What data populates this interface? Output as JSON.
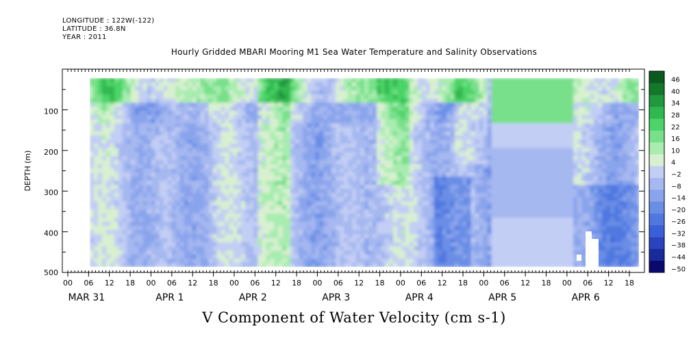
{
  "header": {
    "longitude": "LONGITUDE : 122W(-122)",
    "latitude": "LATITUDE : 36.8N",
    "year": "YEAR : 2011"
  },
  "chart_data": {
    "type": "heatmap",
    "title": "Hourly Gridded MBARI Mooring M1 Sea Water Temperature and Salinity Observations",
    "xlabel": "V Component of Water Velocity (cm s-1)",
    "ylabel": "DEPTH (m)",
    "ylim": [
      500,
      0
    ],
    "y_ticks": [
      100,
      200,
      300,
      400,
      500
    ],
    "x_hour_ticks": [
      "00",
      "06",
      "12",
      "18",
      "00",
      "06",
      "12",
      "18",
      "00",
      "06",
      "12",
      "18",
      "00",
      "06",
      "12",
      "18",
      "00",
      "06",
      "12",
      "18",
      "00",
      "06",
      "12",
      "18",
      "00",
      "06",
      "12",
      "18"
    ],
    "x_day_labels": [
      "MAR 31",
      "APR  1",
      "APR  2",
      "APR  3",
      "APR  4",
      "APR  5",
      "APR  6"
    ],
    "colorbar": {
      "levels": [
        -50,
        -44,
        -38,
        -32,
        -26,
        -20,
        -14,
        -8,
        -2,
        4,
        10,
        16,
        22,
        28,
        34,
        40,
        46
      ],
      "colors_low_to_high": [
        "#0a0a6e",
        "#1a2a9a",
        "#2a44c0",
        "#3a60d8",
        "#5078e0",
        "#6a8ee6",
        "#8aa4ec",
        "#a6b8f0",
        "#c2cef4",
        "#d8f0d0",
        "#a8ecb0",
        "#78e08a",
        "#4cd468",
        "#30b850",
        "#20983c",
        "#14782c",
        "#0a5a1e"
      ]
    },
    "data_extent": {
      "depth_min": 20,
      "depth_max": 490,
      "missing_blocks": "small patches near APR 6 06-09 below 380 m"
    },
    "dominant_values": {
      "shallow_band": "+10 to +22 (green)",
      "deep": "-8 to -20 (blue)"
    }
  }
}
